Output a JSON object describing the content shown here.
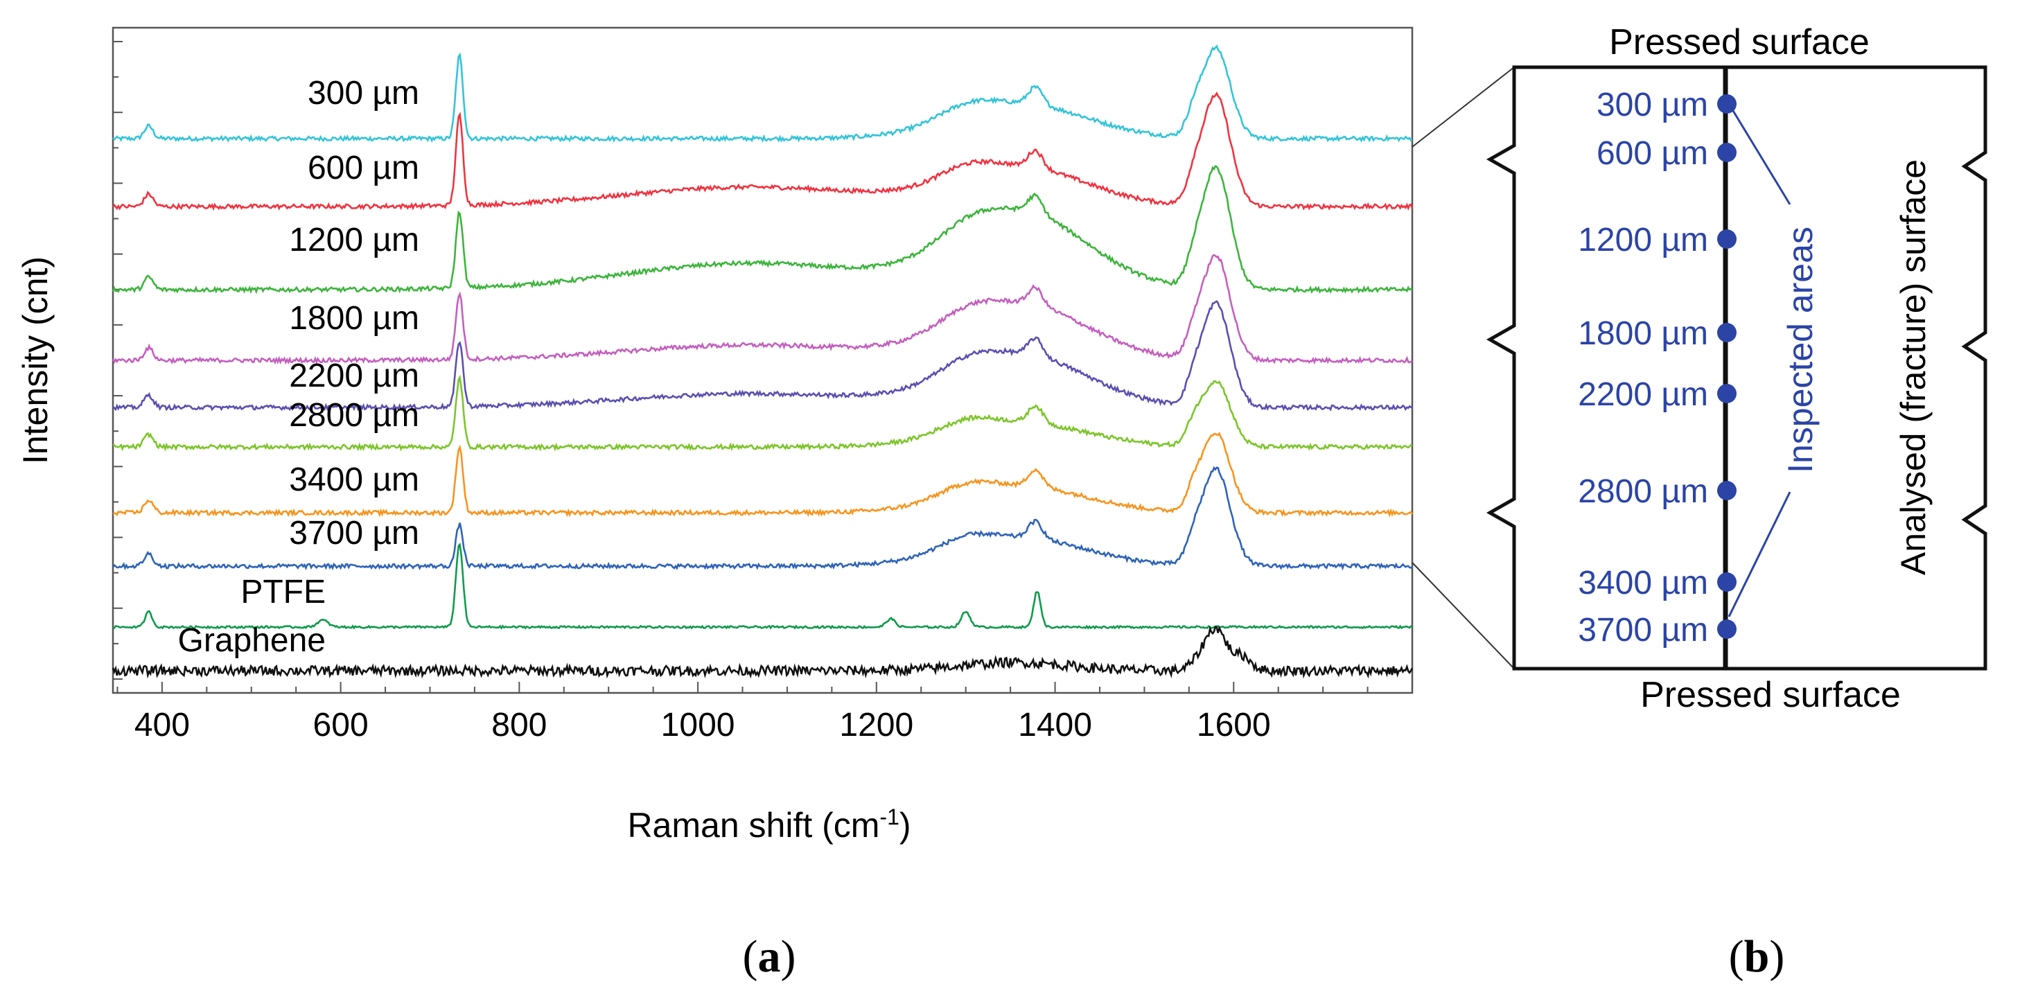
{
  "chart_data": [
    {
      "panel": "(a)",
      "type": "line",
      "xlabel_main": "Raman shift (cm",
      "xlabel_sup": "-1",
      "xlabel_close": ")",
      "ylabel": "Intensity (cnt)",
      "xlim": [
        345,
        1800
      ],
      "xticks": [
        400,
        600,
        800,
        1000,
        1200,
        1400,
        1600
      ],
      "yticks_count": 19,
      "series": [
        {
          "name": "300 µm",
          "color": "#33c4d8",
          "offset": 8.8,
          "bg": 0.0,
          "amp": 1.0,
          "noise": 0.05
        },
        {
          "name": "600 µm",
          "color": "#ef3340",
          "offset": 7.7,
          "bg": 0.0,
          "amp": 1.0,
          "noise": 0.05
        },
        {
          "name": "1200 µm",
          "color": "#3cb43c",
          "offset": 6.5,
          "bg": 0.0,
          "amp": 1.0,
          "noise": 0.05
        },
        {
          "name": "1800 µm",
          "color": "#c45fbf",
          "offset": 5.3,
          "bg": 0.0,
          "amp": 1.0,
          "noise": 0.05
        },
        {
          "name": "2200 µm",
          "color": "#5a4fb0",
          "offset": 4.65,
          "bg": 0.0,
          "amp": 1.0,
          "noise": 0.05
        },
        {
          "name": "2800 µm",
          "color": "#7cc52a",
          "offset": 4.0,
          "bg": 0.0,
          "amp": 1.0,
          "noise": 0.05
        },
        {
          "name": "3400 µm",
          "color": "#f7941d",
          "offset": 3.1,
          "bg": 0.0,
          "amp": 1.0,
          "noise": 0.05
        },
        {
          "name": "3700 µm",
          "color": "#2e63b8",
          "offset": 2.3,
          "bg": 0.0,
          "amp": 1.0,
          "noise": 0.05
        },
        {
          "name": "PTFE",
          "color": "#109a4c",
          "offset": 1.4,
          "bg": 0.0,
          "amp": 1.0,
          "noise": 0.02
        },
        {
          "name": "Graphene",
          "color": "#111111",
          "offset": 0.7,
          "bg": 0.0,
          "amp": 1.0,
          "noise": 0.06
        }
      ]
    },
    {
      "panel": "(b)",
      "type": "diagram",
      "top_label": "Pressed surface",
      "bottom_label": "Pressed surface",
      "side_label": "Analysed (fracture) surface",
      "annotation": "Inspected areas",
      "points": [
        "300 µm",
        "600 µm",
        "1200 µm",
        "1800 µm",
        "2200 µm",
        "2800 µm",
        "3400 µm",
        "3700 µm"
      ],
      "point_color": "#2b44a6"
    }
  ],
  "captions": {
    "a": "a",
    "b": "b"
  },
  "colors": {
    "axis": "#555555",
    "frame": "#111111",
    "label_blue": "#2b44a6"
  }
}
